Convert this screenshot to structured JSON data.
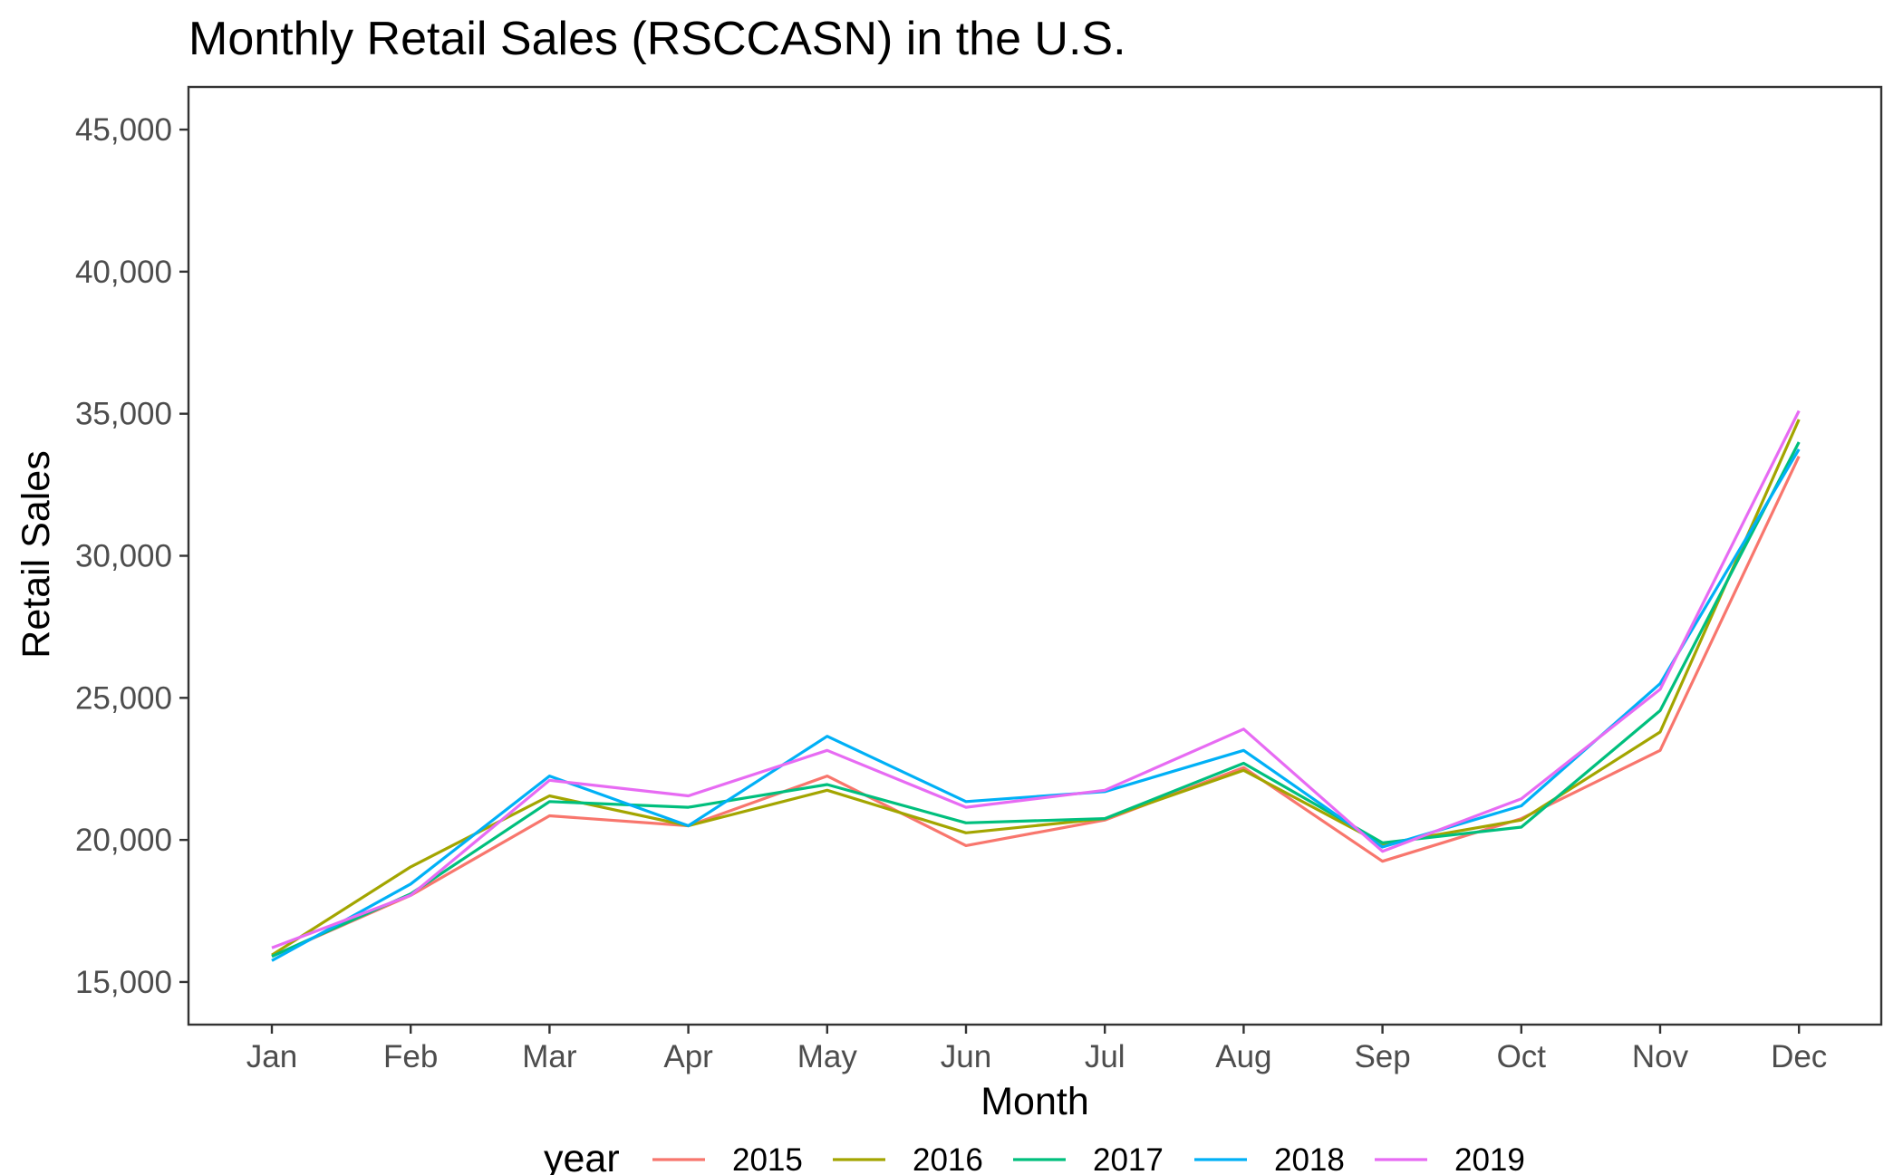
{
  "chart_data": {
    "type": "line",
    "title": "Monthly Retail Sales (RSCCASN) in the U.S.",
    "xlabel": "Month",
    "ylabel": "Retail Sales",
    "categories": [
      "Jan",
      "Feb",
      "Mar",
      "Apr",
      "May",
      "Jun",
      "Jul",
      "Aug",
      "Sep",
      "Oct",
      "Nov",
      "Dec"
    ],
    "yticks": [
      15000,
      20000,
      25000,
      30000,
      35000,
      40000,
      45000
    ],
    "ytick_labels": [
      "15,000",
      "20,000",
      "25,000",
      "30,000",
      "35,000",
      "40,000",
      "45,000"
    ],
    "ylim": [
      13500,
      46500
    ],
    "grid": false,
    "legend": {
      "title": "year",
      "position": "bottom"
    },
    "series": [
      {
        "name": "2015",
        "color": "#F8766D",
        "values": [
          15900,
          18050,
          20850,
          20500,
          22250,
          19800,
          20700,
          22550,
          19250,
          20750,
          23150,
          33500
        ]
      },
      {
        "name": "2016",
        "color": "#A3A500",
        "values": [
          15950,
          19050,
          21550,
          20500,
          21750,
          20250,
          20750,
          22450,
          19850,
          20700,
          23800,
          34800
        ]
      },
      {
        "name": "2017",
        "color": "#00BF7D",
        "values": [
          15900,
          18100,
          21350,
          21150,
          21950,
          20600,
          20750,
          22700,
          19900,
          20450,
          24550,
          34000
        ]
      },
      {
        "name": "2018",
        "color": "#00B0F6",
        "values": [
          15750,
          18450,
          22250,
          20500,
          23650,
          21350,
          21700,
          23150,
          19750,
          21200,
          25500,
          33750
        ]
      },
      {
        "name": "2019",
        "color": "#E76BF3",
        "values": [
          16200,
          18050,
          22100,
          21550,
          23150,
          21150,
          21750,
          23900,
          19600,
          21450,
          25300,
          35100
        ]
      }
    ]
  }
}
